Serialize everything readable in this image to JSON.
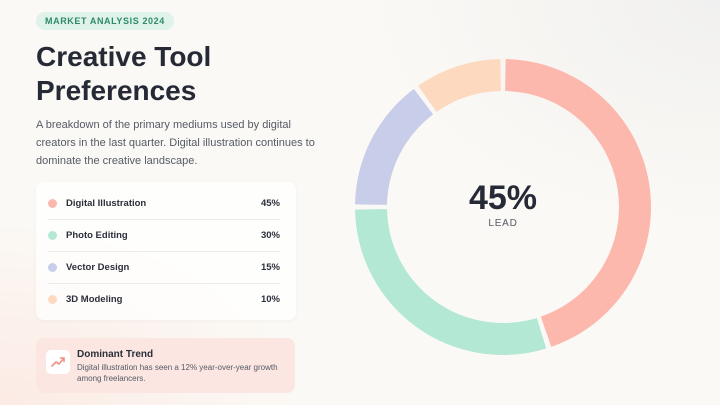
{
  "badge": "MARKET ANALYSIS 2024",
  "title_lines": [
    "Creative Tool",
    "Preferences"
  ],
  "description": "A breakdown of the primary mediums used by digital creators in the last quarter. Digital illustration continues to dominate the creative landscape.",
  "colors": {
    "digital_illustration": "#fdb8ad",
    "photo_editing": "#b3e8d4",
    "vector_design": "#c8cdea",
    "modeling_3d": "#fdd9c0"
  },
  "chart_data": {
    "type": "pie",
    "donut": true,
    "categories": [
      "Digital Illustration",
      "Photo Editing",
      "Vector Design",
      "3D Modeling"
    ],
    "values": [
      45,
      30,
      15,
      10
    ],
    "value_labels": [
      "45%",
      "30%",
      "15%",
      "10%"
    ],
    "center_value": "45%",
    "center_label": "LEAD",
    "colors": [
      "#fdb8ad",
      "#b3e8d4",
      "#c8cdea",
      "#fdd9c0"
    ]
  },
  "trend": {
    "icon": "trend-up-icon",
    "title": "Dominant Trend",
    "text": "Digital illustration has seen a 12% year-over-year growth among freelancers."
  }
}
